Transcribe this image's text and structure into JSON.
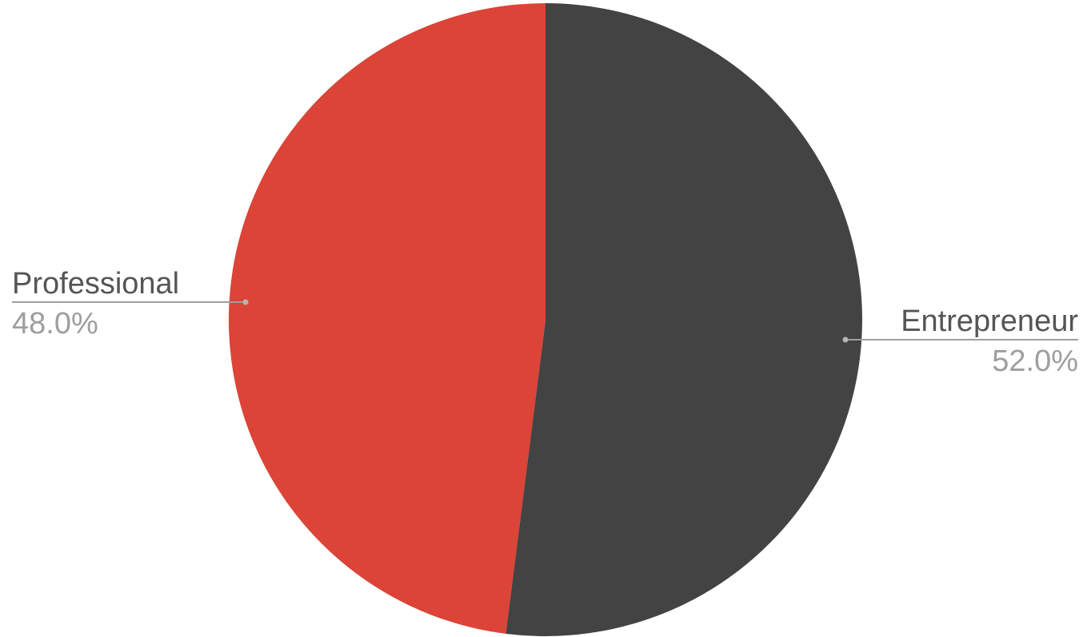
{
  "chart_data": {
    "type": "pie",
    "start_angle_deg": 0,
    "direction": "clockwise",
    "slices": [
      {
        "label": "Entrepreneur",
        "value": 52.0,
        "display": "52.0%",
        "color": "#434343"
      },
      {
        "label": "Professional",
        "value": 48.0,
        "display": "48.0%",
        "color": "#db4437"
      }
    ],
    "label_style": "callout",
    "leader_color": "#9e9e9e",
    "legend": "none"
  }
}
